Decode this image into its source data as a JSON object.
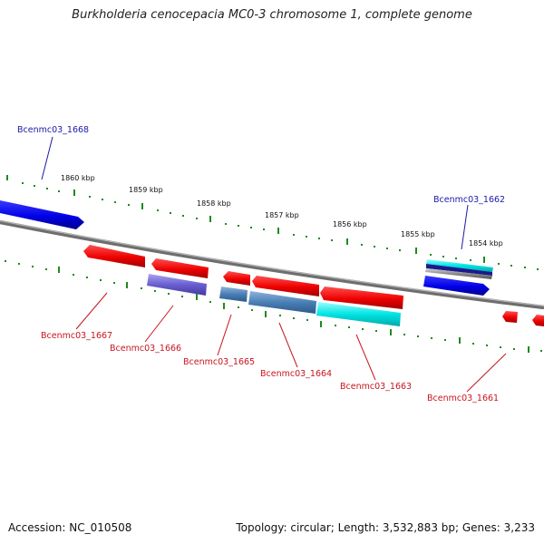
{
  "title": "Burkholderia cenocepacia MC0-3 chromosome 1, complete genome",
  "accession": "Accession: NC_010508",
  "topology": "Topology: circular; Length: 3,532,883 bp; Genes: 3,233",
  "kbp_labels": [
    "1860 kbp",
    "1859 kbp",
    "1858 kbp",
    "1857 kbp",
    "1856 kbp",
    "1855 kbp",
    "1854 kbp"
  ],
  "gene_labels_top": [
    "Bcenmc03_1668",
    "Bcenmc03_1662"
  ],
  "gene_labels_bottom": [
    "Bcenmc03_1667",
    "Bcenmc03_1666",
    "Bcenmc03_1665",
    "Bcenmc03_1664",
    "Bcenmc03_1663",
    "Bcenmc03_1661"
  ],
  "colors": {
    "forward": "#0000e0",
    "reverse": "#ff0000",
    "cyan": "#00e6e6",
    "steel": "#4a7fb5",
    "slate": "#6a5fd0",
    "ticks": "#1f8a1f",
    "backbone": "#808080",
    "top_label": "#1a1aa8",
    "bottom_label": "#c8141e"
  }
}
